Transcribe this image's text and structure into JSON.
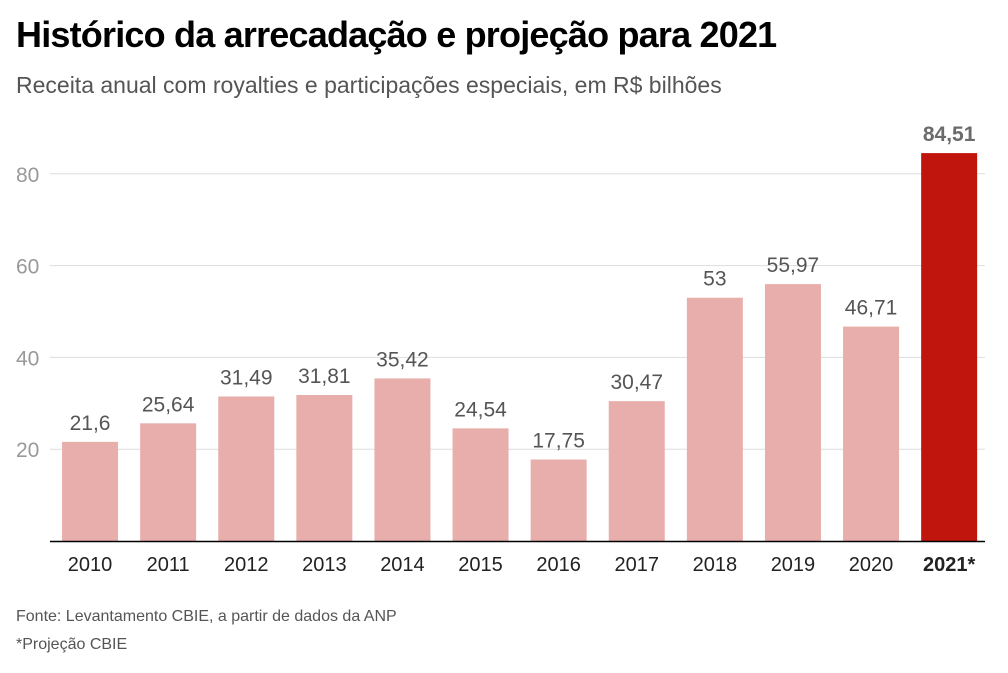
{
  "title": "Histórico da arrecadação e projeção para 2021",
  "subtitle": "Receita anual com royalties e participações especiais, em R$ bilhões",
  "footer": {
    "source": "Fonte: Levantamento CBIE, a partir de dados da ANP",
    "note": "*Projeção CBIE"
  },
  "colors": {
    "bar": "#e8aeab",
    "highlight": "#c0150c",
    "grid": "#dddddd",
    "axis": "#000000",
    "tick_label": "#999999",
    "data_label": "#555555",
    "highlight_label": "#6b6b6b"
  },
  "chart_data": {
    "type": "bar",
    "title": "Histórico da arrecadação e projeção para 2021",
    "subtitle": "Receita anual com royalties e participações especiais, em R$ bilhões",
    "categories": [
      "2010",
      "2011",
      "2012",
      "2013",
      "2014",
      "2015",
      "2016",
      "2017",
      "2018",
      "2019",
      "2020",
      "2021*"
    ],
    "values": [
      21.6,
      25.64,
      31.49,
      31.81,
      35.42,
      24.54,
      17.75,
      30.47,
      53,
      55.97,
      46.71,
      84.51
    ],
    "value_labels": [
      "21,6",
      "25,64",
      "31,49",
      "31,81",
      "35,42",
      "24,54",
      "17,75",
      "30,47",
      "53",
      "55,97",
      "46,71",
      "84,51"
    ],
    "highlight_category": "2021*",
    "xlabel": "",
    "ylabel": "",
    "ylim": [
      0,
      85
    ],
    "yticks": [
      20,
      40,
      60,
      80
    ],
    "grid": true,
    "legend": "none"
  }
}
